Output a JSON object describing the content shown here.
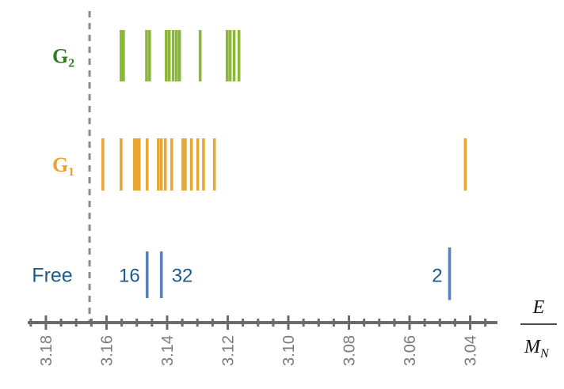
{
  "chart_data": {
    "type": "spectrum",
    "xlim": [
      3.186,
      3.031
    ],
    "xticks": [
      {
        "value": 3.18,
        "label": "3.18"
      },
      {
        "value": 3.16,
        "label": "3.16"
      },
      {
        "value": 3.14,
        "label": "3.14"
      },
      {
        "value": 3.12,
        "label": "3.12"
      },
      {
        "value": 3.1,
        "label": "3.10"
      },
      {
        "value": 3.08,
        "label": "3.08"
      },
      {
        "value": 3.06,
        "label": "3.06"
      },
      {
        "value": 3.04,
        "label": "3.04"
      }
    ],
    "xminorticks": [
      3.185,
      3.175,
      3.17,
      3.165,
      3.155,
      3.15,
      3.145,
      3.135,
      3.13,
      3.125,
      3.115,
      3.11,
      3.105,
      3.095,
      3.09,
      3.085,
      3.075,
      3.07,
      3.065,
      3.055,
      3.05,
      3.045,
      3.035
    ],
    "threshold": 3.1656,
    "x_label_numerator": "E",
    "x_label_denominator": "M",
    "x_label_denominator_subscript": "N",
    "series": [
      {
        "name": "G₂",
        "color": "#8cb73a",
        "label_color": "#2e7d1f",
        "values": [
          3.1552,
          3.1544,
          3.1468,
          3.1458,
          3.1403,
          3.1393,
          3.138,
          3.1369,
          3.1359,
          3.1291,
          3.1202,
          3.1192,
          3.1179,
          3.1163
        ]
      },
      {
        "name": "G₁",
        "color": "#e8a735",
        "label_color": "#eba030",
        "values": [
          3.1612,
          3.1552,
          3.1508,
          3.15,
          3.1492,
          3.1466,
          3.1429,
          3.1419,
          3.1406,
          3.1385,
          3.1348,
          3.134,
          3.132,
          3.1299,
          3.128,
          3.1244,
          3.0416
        ]
      },
      {
        "name": "Free",
        "color": "#5b82b8",
        "label_color": "#1f5a8c",
        "values": [
          3.1466,
          3.1419,
          3.0468
        ],
        "value_labels": [
          "16",
          "32",
          "2"
        ]
      }
    ]
  }
}
